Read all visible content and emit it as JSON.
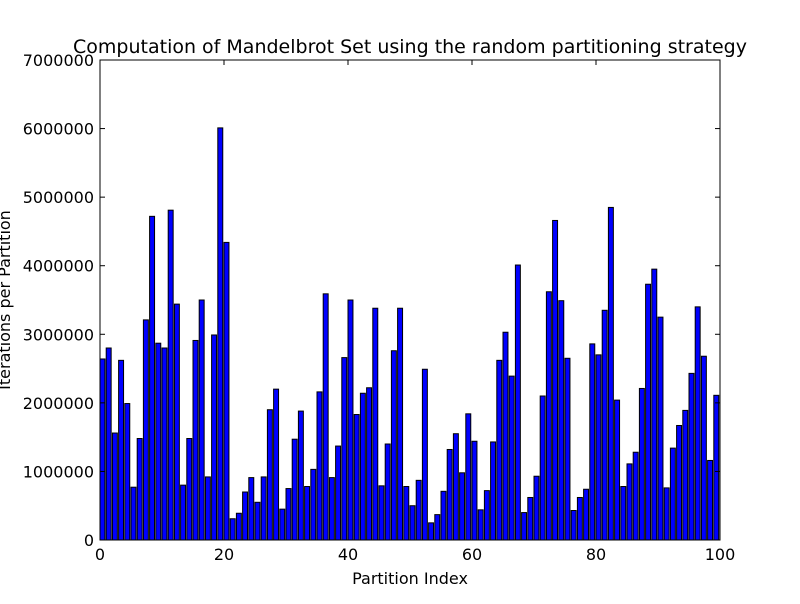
{
  "chart_data": {
    "type": "bar",
    "title": "Computation of Mandelbrot Set using the random partitioning strategy",
    "xlabel": "Partition Index",
    "ylabel": "Iterations per Partition",
    "xlim": [
      0,
      100
    ],
    "ylim": [
      0,
      7000000
    ],
    "x_ticks": [
      0,
      20,
      40,
      60,
      80,
      100
    ],
    "y_ticks": [
      0,
      1000000,
      2000000,
      3000000,
      4000000,
      5000000,
      6000000,
      7000000
    ],
    "grid": false,
    "bar_color": "#0000ff",
    "edge_color": "#000000",
    "x": [
      0,
      1,
      2,
      3,
      4,
      5,
      6,
      7,
      8,
      9,
      10,
      11,
      12,
      13,
      14,
      15,
      16,
      17,
      18,
      19,
      20,
      21,
      22,
      23,
      24,
      25,
      26,
      27,
      28,
      29,
      30,
      31,
      32,
      33,
      34,
      35,
      36,
      37,
      38,
      39,
      40,
      41,
      42,
      43,
      44,
      45,
      46,
      47,
      48,
      49,
      50,
      51,
      52,
      53,
      54,
      55,
      56,
      57,
      58,
      59,
      60,
      61,
      62,
      63,
      64,
      65,
      66,
      67,
      68,
      69,
      70,
      71,
      72,
      73,
      74,
      75,
      76,
      77,
      78,
      79,
      80,
      81,
      82,
      83,
      84,
      85,
      86,
      87,
      88,
      89,
      90,
      91,
      92,
      93,
      94,
      95,
      96,
      97,
      98,
      99
    ],
    "values": [
      2640000,
      2800000,
      1560000,
      2620000,
      1990000,
      770000,
      1480000,
      3210000,
      4720000,
      2870000,
      2800000,
      4810000,
      3440000,
      800000,
      1480000,
      2910000,
      3500000,
      920000,
      2990000,
      6010000,
      4340000,
      310000,
      390000,
      700000,
      910000,
      550000,
      920000,
      1900000,
      2200000,
      450000,
      750000,
      1470000,
      1880000,
      780000,
      1030000,
      2160000,
      3590000,
      910000,
      1370000,
      2660000,
      3500000,
      1830000,
      2140000,
      2220000,
      3380000,
      790000,
      1400000,
      2760000,
      3380000,
      780000,
      500000,
      870000,
      2490000,
      250000,
      370000,
      710000,
      1320000,
      1550000,
      980000,
      1840000,
      1440000,
      440000,
      720000,
      1430000,
      2620000,
      3030000,
      2390000,
      4010000,
      400000,
      620000,
      930000,
      2100000,
      3620000,
      4660000,
      3490000,
      2650000,
      430000,
      620000,
      740000,
      2860000,
      2700000,
      3350000,
      4850000,
      2040000,
      780000,
      1110000,
      1280000,
      2210000,
      3730000,
      3950000,
      3250000,
      760000,
      1340000,
      1670000,
      1890000,
      2430000,
      3400000,
      2680000,
      1160000,
      2110000
    ]
  }
}
